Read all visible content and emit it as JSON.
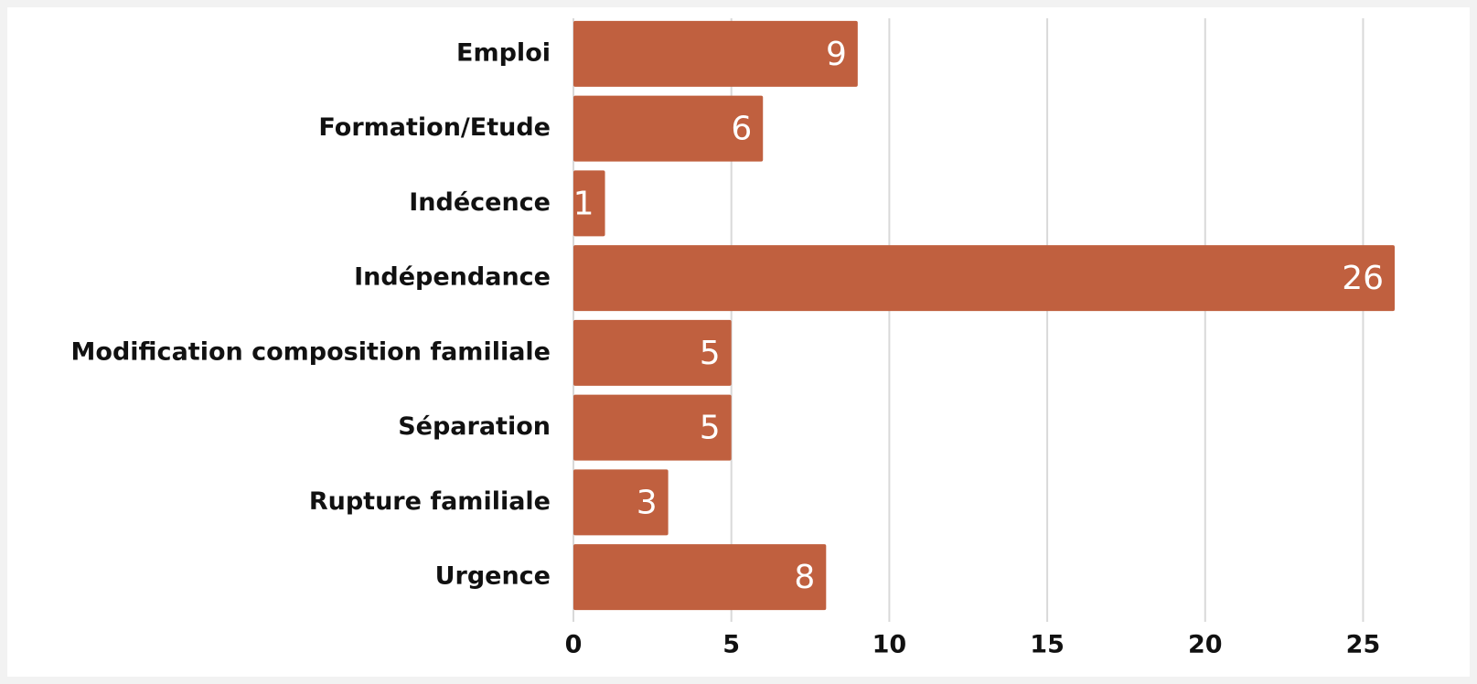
{
  "chart_data": {
    "type": "barh",
    "categories": [
      "Emploi",
      "Formation/Etude",
      "Indécence",
      "Indépendance",
      "Modification composition familiale",
      "Séparation",
      "Rupture familiale",
      "Urgence"
    ],
    "values": [
      9,
      6,
      1,
      26,
      5,
      5,
      3,
      8
    ],
    "color": "#c0603f",
    "xlim": [
      0,
      26
    ],
    "xticks": [
      0,
      5,
      10,
      15,
      20,
      25
    ],
    "grid": true
  }
}
